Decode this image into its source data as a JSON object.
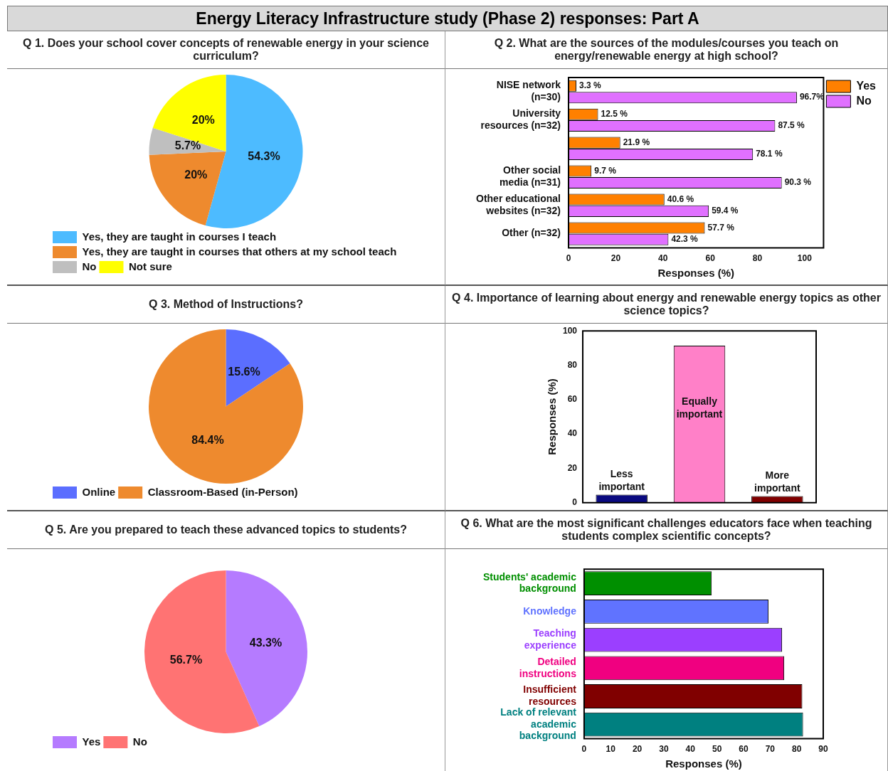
{
  "chart_data": [
    {
      "type": "other",
      "title": "Energy Literacy Infrastructure study (Phase 2) responses: Part A"
    },
    {
      "type": "pie",
      "title": "Q 1. Does your school cover concepts of renewable energy in your science curriculum?",
      "categories": [
        "Yes, they are taught in courses I teach",
        "Yes, they are taught in courses that others at my school teach",
        "No",
        "Not sure"
      ],
      "values": [
        54.3,
        20,
        5.7,
        20
      ],
      "colors": [
        "#4dbbff",
        "#ee8a2e",
        "#bfbfbf",
        "#ffff00"
      ],
      "value_labels": [
        "54.3%",
        "20%",
        "5.7%",
        "20%"
      ],
      "legend": "bottom"
    },
    {
      "type": "bar",
      "orientation": "horizontal",
      "title": "Q 2. What are the sources of the modules/courses you teach on energy/renewable energy at high school?",
      "categories": [
        "NISE network (n=30)",
        "University resources (n=32)",
        null,
        "Other social media (n=31)",
        "Other educational websites (n=32)",
        "Other (n=32)"
      ],
      "series": [
        {
          "name": "Yes",
          "color": "#ff8000",
          "values": [
            3.3,
            12.5,
            21.9,
            9.7,
            40.6,
            57.7
          ],
          "value_labels": [
            "3.3 %",
            "12.5 %",
            "21.9 %",
            "9.7 %",
            "40.6 %",
            "57.7 %"
          ]
        },
        {
          "name": "No",
          "color": "#e070ff",
          "values": [
            96.7,
            87.5,
            78.1,
            90.3,
            59.4,
            42.3
          ],
          "value_labels": [
            "96.7%",
            "87.5 %",
            "78.1 %",
            "90.3 %",
            "59.4 %",
            "42.3 %"
          ]
        }
      ],
      "xlim": [
        0,
        108
      ],
      "xticks": [
        0,
        20,
        40,
        60,
        80,
        100
      ],
      "xlabel": "Responses (%)",
      "legend": "top right"
    },
    {
      "type": "pie",
      "title": "Q 3. Method of Instructions?",
      "categories": [
        "Online",
        "Classroom-Based (in-Person)"
      ],
      "values": [
        15.6,
        84.4
      ],
      "colors": [
        "#5b6eff",
        "#ee8a2e"
      ],
      "value_labels": [
        "15.6%",
        "84.4%"
      ],
      "legend": "bottom"
    },
    {
      "type": "bar",
      "title": "Q 4. Importance of learning about energy and renewable energy topics as other science topics?",
      "categories": [
        "Less important",
        "Equally important",
        "More important"
      ],
      "values": [
        4.7,
        91.4,
        3.9
      ],
      "colors": [
        "#0a0a80",
        "#ff80c8",
        "#800000"
      ],
      "ylim": [
        0,
        100
      ],
      "yticks": [
        0,
        20,
        40,
        60,
        80,
        100
      ],
      "ylabel": "Responses (%)"
    },
    {
      "type": "pie",
      "title": "Q 5. Are you prepared to teach these advanced topics to students?",
      "categories": [
        "Yes",
        "No"
      ],
      "values": [
        43.3,
        56.7
      ],
      "colors": [
        "#b57bff",
        "#ff7373"
      ],
      "value_labels": [
        "43.3%",
        "56.7%"
      ],
      "legend": "bottom"
    },
    {
      "type": "bar",
      "orientation": "horizontal",
      "title": "Q 6. What are the most significant challenges educators face when teaching students complex scientific concepts?",
      "categories": [
        "Students' academic background",
        "Knowledge",
        "Teaching experience",
        "Detailed instructions",
        "Insufficient resources",
        "Lack of relevant academic background"
      ],
      "values": [
        48.0,
        69.4,
        74.5,
        75.3,
        82.1,
        82.4
      ],
      "colors": [
        "#008f00",
        "#6073ff",
        "#9b3fff",
        "#f00080",
        "#800000",
        "#008080"
      ],
      "xlim": [
        0,
        90
      ],
      "xticks": [
        0,
        10,
        20,
        30,
        40,
        50,
        60,
        70,
        80,
        90
      ],
      "xlabel": "Responses (%)"
    }
  ]
}
